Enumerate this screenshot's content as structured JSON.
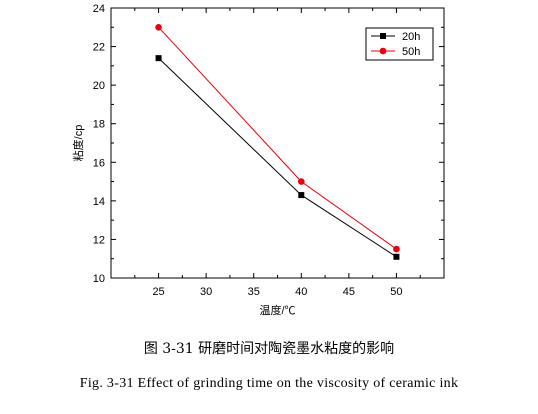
{
  "chart_data": {
    "type": "line",
    "xlabel": "温度/℃",
    "ylabel": "粘度/cp",
    "xlim": [
      20,
      55
    ],
    "ylim": [
      10,
      24
    ],
    "xticks": [
      25,
      30,
      35,
      40,
      45,
      50
    ],
    "yticks": [
      10,
      12,
      14,
      16,
      18,
      20,
      22,
      24
    ],
    "x": [
      25,
      40,
      50
    ],
    "series": [
      {
        "name": "20h",
        "color": "#000000",
        "marker": "square",
        "values": [
          21.4,
          14.3,
          11.1
        ]
      },
      {
        "name": "50h",
        "color": "#e8000b",
        "marker": "circle",
        "values": [
          23.0,
          15.0,
          11.5
        ]
      }
    ],
    "legend_position": "top-right",
    "grid": false
  },
  "captions": {
    "chinese": "图 3-31  研磨时间对陶瓷墨水粘度的影响",
    "english": "Fig. 3-31    Effect of grinding time on the viscosity of ceramic ink"
  }
}
